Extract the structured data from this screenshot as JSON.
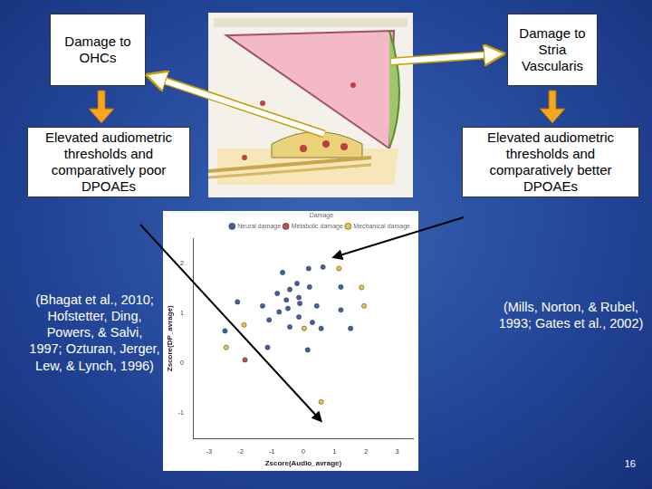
{
  "slide": {
    "left": {
      "cause": "Damage to OHCs",
      "effect": "Elevated audiometric thresholds and comparatively poor DPOAEs",
      "citation": "(Bhagat et al., 2010; Hofstetter, Ding, Powers, & Salvi, 1997; Ozturan, Jerger, Lew, & Lynch, 1996)"
    },
    "right": {
      "cause": "Damage to Stria Vascularis",
      "effect": "Elevated audiometric thresholds and comparatively better DPOAEs",
      "citation": "(Mills, Norton, & Rubel, 1993; Gates et al., 2002)"
    },
    "page_number": "16"
  },
  "chart_data": {
    "type": "scatter",
    "x_label": "Zscore(Audio_avrage)",
    "y_label": "Zscore(DP_avrage)",
    "legend_title": "Damage",
    "legend": "top",
    "grid": false,
    "marker": "circle",
    "xlim": [
      -3.5,
      3.5
    ],
    "xticks": [
      -3,
      -2,
      -1,
      0,
      1,
      2,
      3
    ],
    "ylim": [
      -1.5,
      2.5
    ],
    "yticks": [
      -1,
      0,
      1,
      2
    ],
    "series": [
      {
        "name": "Neural damage",
        "color": "#3f5fa8",
        "x": [
          0.17,
          0.63,
          -0.66,
          -0.2,
          0.2,
          -0.43,
          -0.83,
          -0.14,
          -0.54,
          -0.11,
          0.43,
          -2.1,
          -1.3,
          -0.49,
          -0.77,
          -0.14,
          0.29,
          -1.09,
          -0.43,
          0.57,
          1.2,
          1.51,
          -1.14,
          0.14,
          -2.5,
          1.2
        ],
        "values": [
          1.9,
          1.93,
          1.82,
          1.6,
          1.53,
          1.48,
          1.4,
          1.32,
          1.27,
          1.2,
          1.15,
          1.23,
          1.15,
          1.1,
          1.03,
          0.93,
          0.82,
          0.87,
          0.73,
          0.7,
          1.53,
          0.7,
          0.32,
          0.27,
          0.65,
          1.07
        ]
      },
      {
        "name": "Metabolic damage",
        "color": "#c0504d",
        "x": [
          -1.86
        ],
        "values": [
          0.07
        ]
      },
      {
        "name": "Mechanical damage",
        "color": "#e8c440",
        "x": [
          1.14,
          1.86,
          1.94,
          -1.89,
          -2.46,
          0.03,
          0.57
        ],
        "values": [
          1.9,
          1.52,
          1.15,
          0.77,
          0.32,
          0.7,
          -0.77
        ]
      }
    ]
  }
}
